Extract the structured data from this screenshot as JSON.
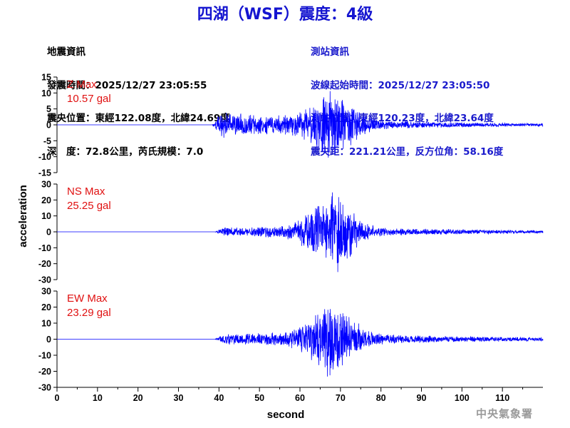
{
  "title": "四湖（WSF）震度：4級",
  "quake_info": {
    "heading": "地震資訊",
    "time": "發震時間：2025/12/27 23:05:55",
    "location": "震央位置：東經122.08度，北緯24.69度",
    "depth_magnitude": "深　度：72.8公里，芮氏規模：7.0"
  },
  "station_info": {
    "heading": "測站資訊",
    "start_time": "波線起始時間：2025/12/27 23:05:50",
    "location": "測站位置：東經120.23度，北緯23.64度",
    "distance": "震央距：221.21公里，反方位角：58.16度"
  },
  "agency": "中央氣象署",
  "colors": {
    "title": "#1515d0",
    "trace": "#0000ff",
    "max_label": "#e01010",
    "station_text": "#1a1acc"
  },
  "chart_data": {
    "type": "line",
    "xlabel": "second",
    "ylabel": "acceleration",
    "xlim": [
      0,
      120
    ],
    "xticks": [
      0,
      10,
      20,
      30,
      40,
      50,
      60,
      70,
      80,
      90,
      100,
      110
    ],
    "panels": [
      {
        "component": "Z",
        "max_label": "Z Max",
        "max_value": "10.57 gal",
        "peak": 10.57,
        "ylim": [
          -15,
          15
        ],
        "yticks": [
          -15,
          -10,
          -5,
          0,
          5,
          10,
          15
        ],
        "onset": 38.3,
        "p_amp": 3.2,
        "s_amp": 6.5,
        "coda": 1.2,
        "seed": 11
      },
      {
        "component": "NS",
        "max_label": "NS Max",
        "max_value": "25.25 gal",
        "peak": 25.25,
        "ylim": [
          -30,
          30
        ],
        "yticks": [
          -30,
          -20,
          -10,
          0,
          10,
          20,
          30
        ],
        "onset": 39.0,
        "p_amp": 1.6,
        "s_amp": 14.0,
        "coda": 2.2,
        "seed": 23
      },
      {
        "component": "EW",
        "max_label": "EW Max",
        "max_value": "23.29 gal",
        "peak": 23.29,
        "ylim": [
          -30,
          30
        ],
        "yticks": [
          -30,
          -20,
          -10,
          0,
          10,
          20,
          30
        ],
        "onset": 39.0,
        "p_amp": 1.8,
        "s_amp": 12.5,
        "coda": 2.6,
        "seed": 37
      }
    ]
  }
}
